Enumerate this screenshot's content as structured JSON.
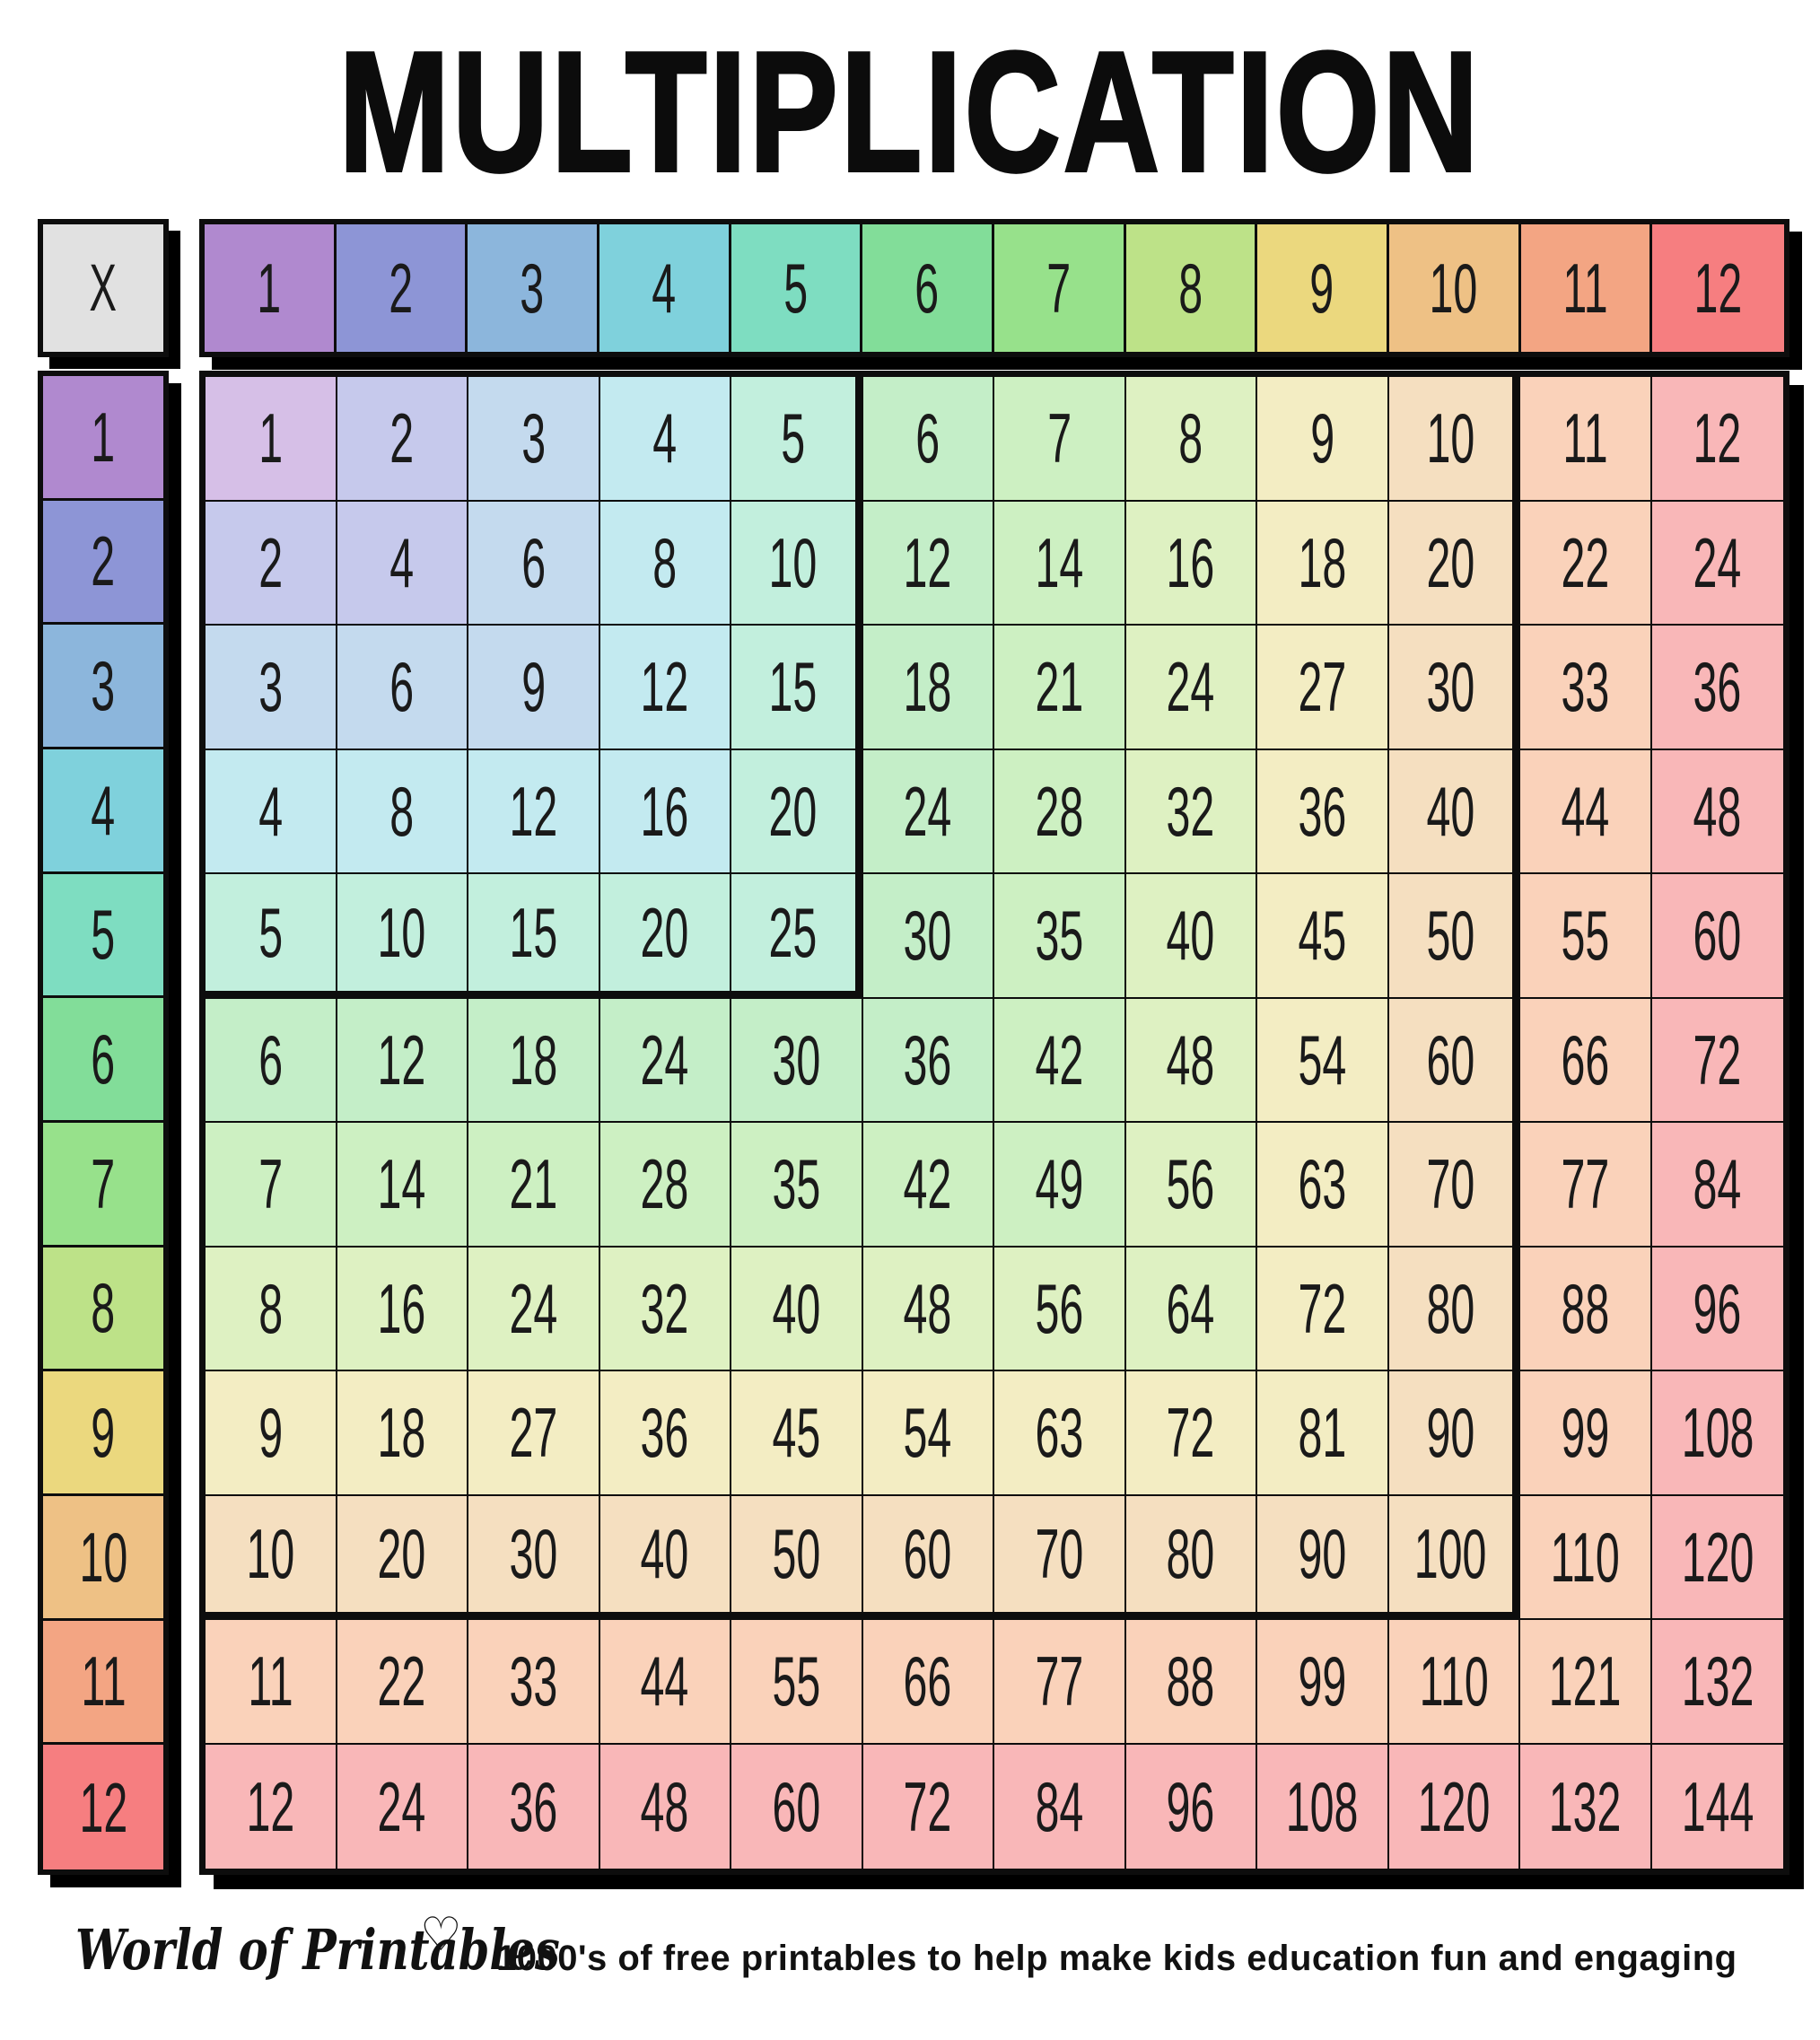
{
  "title": "MULTIPLICATION",
  "header": {
    "corner": "X",
    "columns": [
      "1",
      "2",
      "3",
      "4",
      "5",
      "6",
      "7",
      "8",
      "9",
      "10",
      "11",
      "12"
    ]
  },
  "row_labels": [
    "1",
    "2",
    "3",
    "4",
    "5",
    "6",
    "7",
    "8",
    "9",
    "10",
    "11",
    "12"
  ],
  "chart_data": {
    "type": "table",
    "title": "MULTIPLICATION",
    "col_headers": [
      1,
      2,
      3,
      4,
      5,
      6,
      7,
      8,
      9,
      10,
      11,
      12
    ],
    "row_headers": [
      1,
      2,
      3,
      4,
      5,
      6,
      7,
      8,
      9,
      10,
      11,
      12
    ],
    "values": [
      [
        1,
        2,
        3,
        4,
        5,
        6,
        7,
        8,
        9,
        10,
        11,
        12
      ],
      [
        2,
        4,
        6,
        8,
        10,
        12,
        14,
        16,
        18,
        20,
        22,
        24
      ],
      [
        3,
        6,
        9,
        12,
        15,
        18,
        21,
        24,
        27,
        30,
        33,
        36
      ],
      [
        4,
        8,
        12,
        16,
        20,
        24,
        28,
        32,
        36,
        40,
        44,
        48
      ],
      [
        5,
        10,
        15,
        20,
        25,
        30,
        35,
        40,
        45,
        50,
        55,
        60
      ],
      [
        6,
        12,
        18,
        24,
        30,
        36,
        42,
        48,
        54,
        60,
        66,
        72
      ],
      [
        7,
        14,
        21,
        28,
        35,
        42,
        49,
        56,
        63,
        70,
        77,
        84
      ],
      [
        8,
        16,
        24,
        32,
        40,
        48,
        56,
        64,
        72,
        80,
        88,
        96
      ],
      [
        9,
        18,
        27,
        36,
        45,
        54,
        63,
        72,
        81,
        90,
        99,
        108
      ],
      [
        10,
        20,
        30,
        40,
        50,
        60,
        70,
        80,
        90,
        100,
        110,
        120
      ],
      [
        11,
        22,
        33,
        44,
        55,
        66,
        77,
        88,
        99,
        110,
        121,
        132
      ],
      [
        12,
        24,
        36,
        48,
        60,
        72,
        84,
        96,
        108,
        120,
        132,
        144
      ]
    ],
    "highlight_blocks": [
      "1-5 times 1-5",
      "1-10 times 1-10"
    ]
  },
  "colors": {
    "strong": [
      "#b089cf",
      "#8d95d6",
      "#8cb6dc",
      "#7fd1dc",
      "#7eddc1",
      "#82dd99",
      "#97e18b",
      "#bde288",
      "#ebd87e",
      "#eec185",
      "#f3a583",
      "#f67e80"
    ],
    "pastel": [
      "#d6bfe7",
      "#c6c9ec",
      "#c4daee",
      "#c3eaf0",
      "#c2efdd",
      "#c4eec8",
      "#cdf0c2",
      "#def1c2",
      "#f3edc3",
      "#f5dfc0",
      "#fad2ba",
      "#f9b7b8"
    ],
    "corner_bg": "#e1e1e1",
    "border": "#0d0d0d",
    "text": "#1a1a1a",
    "shadow": "#000000"
  },
  "footer": {
    "brand": "World of Printables",
    "heart": "♡",
    "tagline": "1000's of free printables to help make kids education fun and engaging"
  }
}
